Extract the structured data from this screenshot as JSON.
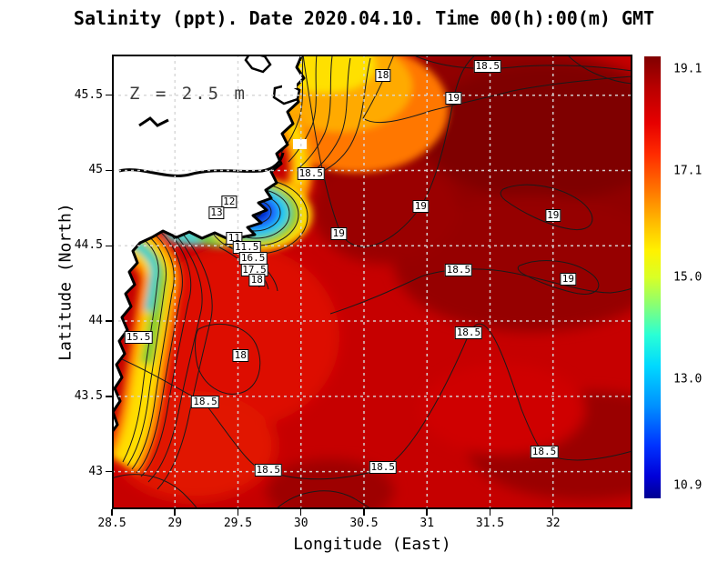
{
  "title": "Salinity (ppt). Date 2020.04.10. Time 00(h):00(m) GMT",
  "chart_data": {
    "type": "heatmap",
    "variable": "Salinity (ppt)",
    "date": "2020.04.10",
    "time": "00(h):00(m) GMT",
    "depth_annotation": "Z = 2.5 m",
    "xlabel": "Longitude (East)",
    "ylabel": "Latitude (North)",
    "xlim": [
      28.5,
      32.63
    ],
    "ylim": [
      42.75,
      45.77
    ],
    "x_ticks": [
      28.5,
      29,
      29.5,
      30,
      30.5,
      31,
      31.5,
      32
    ],
    "y_ticks": [
      43,
      43.5,
      44,
      44.5,
      45,
      45.5
    ],
    "grid": true,
    "contour_interval": 0.5,
    "colorbar": {
      "min": 10.9,
      "max": 19.1,
      "tick_labels": [
        "19.1",
        "17.1",
        "15.0",
        "13.0",
        "10.9"
      ],
      "tick_values": [
        19.1,
        17.1,
        15.0,
        13.0,
        10.9
      ],
      "colormap": "jet",
      "accent_top_color": "#800000",
      "accent_bottom_color": "#000091"
    },
    "contour_labels": [
      {
        "value": "18",
        "lon": 30.65,
        "lat": 45.63
      },
      {
        "value": "18.5",
        "lon": 31.48,
        "lat": 45.69
      },
      {
        "value": "19",
        "lon": 31.21,
        "lat": 45.48
      },
      {
        "value": "18.5",
        "lon": 30.08,
        "lat": 44.98
      },
      {
        "value": "12",
        "lon": 29.43,
        "lat": 44.79
      },
      {
        "value": "13",
        "lon": 29.33,
        "lat": 44.72
      },
      {
        "value": "19",
        "lon": 30.95,
        "lat": 44.76
      },
      {
        "value": "19",
        "lon": 32.0,
        "lat": 44.7
      },
      {
        "value": "11",
        "lon": 29.47,
        "lat": 44.55
      },
      {
        "value": "11.5",
        "lon": 29.57,
        "lat": 44.49
      },
      {
        "value": "16.5",
        "lon": 29.62,
        "lat": 44.42
      },
      {
        "value": "17.5",
        "lon": 29.63,
        "lat": 44.34
      },
      {
        "value": "18",
        "lon": 29.65,
        "lat": 44.27
      },
      {
        "value": "19",
        "lon": 30.3,
        "lat": 44.58
      },
      {
        "value": "18.5",
        "lon": 31.25,
        "lat": 44.34
      },
      {
        "value": "19",
        "lon": 32.12,
        "lat": 44.28
      },
      {
        "value": "15.5",
        "lon": 28.71,
        "lat": 43.89
      },
      {
        "value": "18",
        "lon": 29.52,
        "lat": 43.77
      },
      {
        "value": "18.5",
        "lon": 31.33,
        "lat": 43.92
      },
      {
        "value": "18.5",
        "lon": 29.24,
        "lat": 43.46
      },
      {
        "value": "18.5",
        "lon": 31.93,
        "lat": 43.13
      },
      {
        "value": "18.5",
        "lon": 29.74,
        "lat": 43.01
      },
      {
        "value": "18.5",
        "lon": 30.65,
        "lat": 43.03
      }
    ]
  }
}
